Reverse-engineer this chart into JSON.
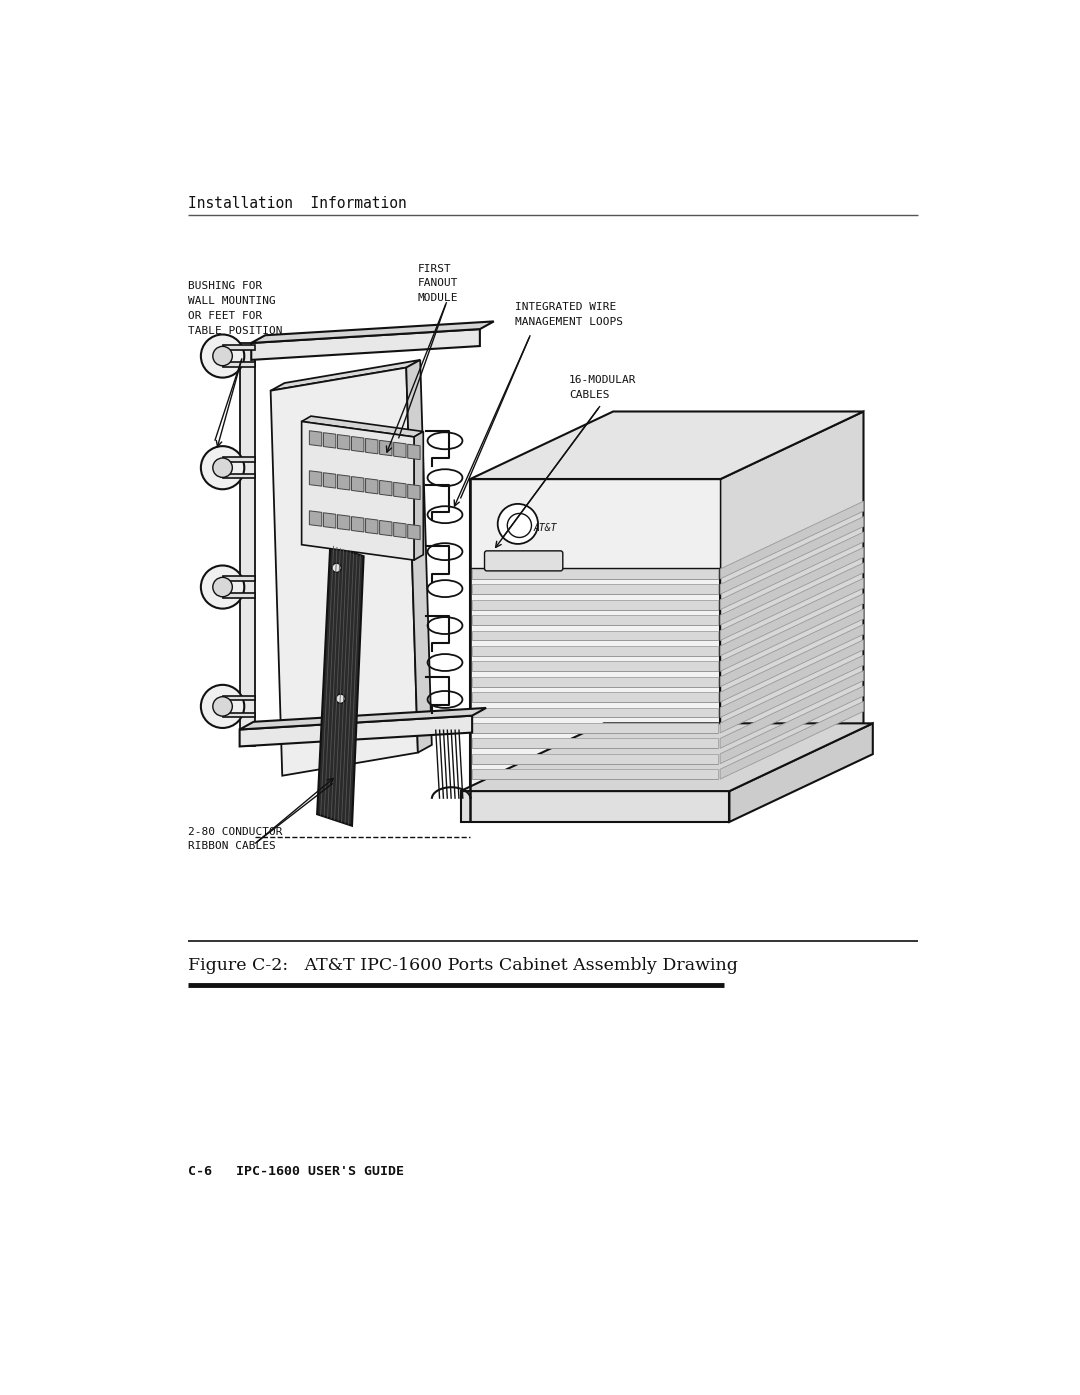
{
  "bg_color": "#ffffff",
  "text_color": "#111111",
  "dark": "#111111",
  "gray_light": "#e8e8e8",
  "gray_mid": "#cccccc",
  "gray_dark": "#999999",
  "header_text": "Installation  Information",
  "figure_caption": "Figure C-2:   AT&T IPC-1600 Ports Cabinet Assembly Drawing",
  "footer_text": "C-6   IPC-1600 USER'S GUIDE",
  "label_bushing": "BUSHING FOR\nWALL MOUNTING\nOR FEET FOR\nTABLE POSITION",
  "label_fanout": "FIRST\nFANOUT\nMODULE",
  "label_wire": "INTEGRATED WIRE\nMANAGEMENT LOOPS",
  "label_modular": "16-MODULAR\nCABLES",
  "label_ribbon": "2-80 CONDUCTOR\nRIBBON CABLES",
  "font_size_header": 10.5,
  "font_size_labels": 8.0,
  "font_size_caption": 12.5,
  "font_size_footer": 9.5
}
